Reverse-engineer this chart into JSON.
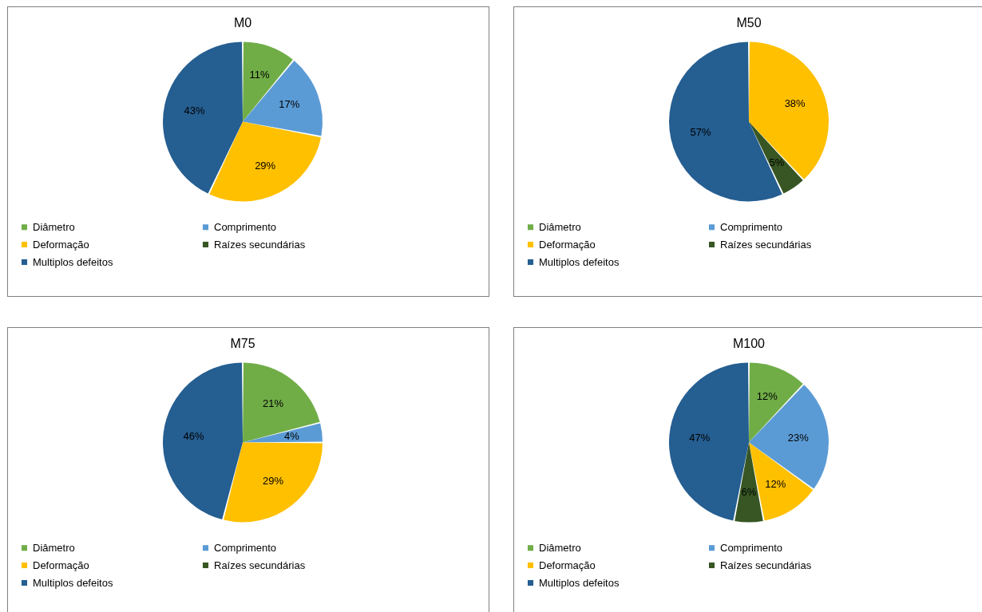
{
  "chart_data": [
    {
      "type": "pie",
      "title": "M0",
      "categories": [
        "Diâmetro",
        "Comprimento",
        "Deformação",
        "Raízes secundárias",
        "Multiplos defeitos"
      ],
      "values": [
        11,
        17,
        29,
        0,
        43
      ],
      "value_labels": [
        "11%",
        "17%",
        "29%",
        null,
        "43%"
      ],
      "colors": [
        "#70ad47",
        "#5b9bd5",
        "#ffc000",
        "#375623",
        "#255e91"
      ],
      "legend": "bottom"
    },
    {
      "type": "pie",
      "title": "M50",
      "categories": [
        "Diâmetro",
        "Comprimento",
        "Deformação",
        "Raízes secundárias",
        "Multiplos defeitos"
      ],
      "values": [
        0,
        0,
        38,
        5,
        57
      ],
      "value_labels": [
        null,
        null,
        "38%",
        "5%",
        "57%"
      ],
      "colors": [
        "#70ad47",
        "#5b9bd5",
        "#ffc000",
        "#375623",
        "#255e91"
      ],
      "legend": "bottom"
    },
    {
      "type": "pie",
      "title": "M75",
      "categories": [
        "Diâmetro",
        "Comprimento",
        "Deformação",
        "Raízes secundárias",
        "Multiplos defeitos"
      ],
      "values": [
        21,
        4,
        29,
        0,
        46
      ],
      "value_labels": [
        "21%",
        "4%",
        "29%",
        null,
        "46%"
      ],
      "colors": [
        "#70ad47",
        "#5b9bd5",
        "#ffc000",
        "#375623",
        "#255e91"
      ],
      "legend": "bottom"
    },
    {
      "type": "pie",
      "title": "M100",
      "categories": [
        "Diâmetro",
        "Comprimento",
        "Deformação",
        "Raízes secundárias",
        "Multiplos defeitos"
      ],
      "values": [
        12,
        23,
        12,
        6,
        47
      ],
      "value_labels": [
        "12%",
        "23%",
        "12%",
        "6%",
        "47%"
      ],
      "colors": [
        "#70ad47",
        "#5b9bd5",
        "#ffc000",
        "#375623",
        "#255e91"
      ],
      "legend": "bottom"
    }
  ]
}
